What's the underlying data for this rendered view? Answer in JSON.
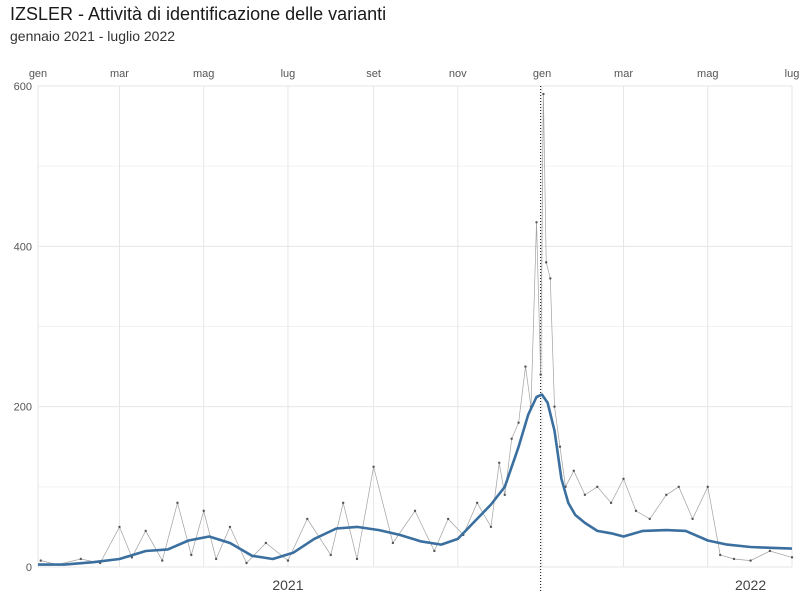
{
  "header": {
    "title": "IZSLER - Attività di identificazione delle varianti",
    "subtitle": "gennaio 2021 - luglio 2022"
  },
  "chart_data": {
    "type": "line",
    "title": "IZSLER - Attività di identificazione delle varianti",
    "subtitle": "gennaio 2021 - luglio 2022",
    "xlabel": "",
    "ylabel": "",
    "x_range": [
      "2021-01-01",
      "2022-07-01"
    ],
    "ylim": [
      0,
      600
    ],
    "y_ticks": [
      0,
      200,
      400,
      600
    ],
    "month_ticks": [
      {
        "label": "gen",
        "date": "2021-01-01"
      },
      {
        "label": "mar",
        "date": "2021-03-01"
      },
      {
        "label": "mag",
        "date": "2021-05-01"
      },
      {
        "label": "lug",
        "date": "2021-07-01"
      },
      {
        "label": "set",
        "date": "2021-09-01"
      },
      {
        "label": "nov",
        "date": "2021-11-01"
      },
      {
        "label": "gen",
        "date": "2022-01-01"
      },
      {
        "label": "mar",
        "date": "2022-03-01"
      },
      {
        "label": "mag",
        "date": "2022-05-01"
      },
      {
        "label": "lug",
        "date": "2022-07-01"
      }
    ],
    "year_labels": [
      {
        "label": "2021",
        "date": "2021-07-01"
      },
      {
        "label": "2022",
        "date": "2022-06-01"
      }
    ],
    "vline_date": "2021-12-31",
    "grid": true,
    "colors": {
      "smooth": "#3a6f9f",
      "daily": "#8a8a8a",
      "grid": "#e6e6e6",
      "vline": "#000000"
    },
    "series": [
      {
        "style": "daily",
        "x": [
          "2021-01-03",
          "2021-01-15",
          "2021-02-01",
          "2021-02-15",
          "2021-03-01",
          "2021-03-10",
          "2021-03-20",
          "2021-04-01",
          "2021-04-12",
          "2021-04-22",
          "2021-05-01",
          "2021-05-10",
          "2021-05-20",
          "2021-06-01",
          "2021-06-15",
          "2021-07-01",
          "2021-07-15",
          "2021-08-01",
          "2021-08-10",
          "2021-08-20",
          "2021-09-01",
          "2021-09-15",
          "2021-10-01",
          "2021-10-15",
          "2021-10-25",
          "2021-11-05",
          "2021-11-15",
          "2021-11-25",
          "2021-12-01",
          "2021-12-05",
          "2021-12-10",
          "2021-12-15",
          "2021-12-20",
          "2021-12-24",
          "2021-12-28",
          "2021-12-31",
          "2022-01-02",
          "2022-01-04",
          "2022-01-07",
          "2022-01-10",
          "2022-01-14",
          "2022-01-18",
          "2022-01-24",
          "2022-02-01",
          "2022-02-10",
          "2022-02-20",
          "2022-03-01",
          "2022-03-10",
          "2022-03-20",
          "2022-04-01",
          "2022-04-10",
          "2022-04-20",
          "2022-05-01",
          "2022-05-10",
          "2022-05-20",
          "2022-06-01",
          "2022-06-15",
          "2022-07-01"
        ],
        "values": [
          8,
          3,
          10,
          5,
          50,
          12,
          45,
          8,
          80,
          15,
          70,
          10,
          50,
          5,
          30,
          8,
          60,
          15,
          80,
          10,
          125,
          30,
          70,
          20,
          60,
          40,
          80,
          50,
          130,
          90,
          160,
          180,
          250,
          200,
          430,
          240,
          590,
          380,
          360,
          200,
          150,
          100,
          120,
          90,
          100,
          80,
          110,
          70,
          60,
          90,
          100,
          60,
          100,
          15,
          10,
          8,
          20,
          12
        ]
      },
      {
        "style": "smooth",
        "x": [
          "2021-01-01",
          "2021-01-20",
          "2021-02-10",
          "2021-03-01",
          "2021-03-20",
          "2021-04-05",
          "2021-04-20",
          "2021-05-05",
          "2021-05-20",
          "2021-06-05",
          "2021-06-20",
          "2021-07-05",
          "2021-07-20",
          "2021-08-05",
          "2021-08-20",
          "2021-09-05",
          "2021-09-20",
          "2021-10-05",
          "2021-10-20",
          "2021-11-01",
          "2021-11-15",
          "2021-11-25",
          "2021-12-05",
          "2021-12-15",
          "2021-12-22",
          "2021-12-28",
          "2022-01-01",
          "2022-01-05",
          "2022-01-10",
          "2022-01-15",
          "2022-01-20",
          "2022-01-25",
          "2022-02-01",
          "2022-02-10",
          "2022-02-20",
          "2022-03-01",
          "2022-03-15",
          "2022-04-01",
          "2022-04-15",
          "2022-05-01",
          "2022-05-15",
          "2022-06-01",
          "2022-06-15",
          "2022-07-01"
        ],
        "values": [
          3,
          3,
          6,
          10,
          20,
          22,
          33,
          38,
          30,
          14,
          10,
          18,
          35,
          48,
          50,
          46,
          40,
          32,
          28,
          35,
          60,
          78,
          100,
          150,
          190,
          212,
          215,
          205,
          170,
          110,
          80,
          65,
          55,
          45,
          42,
          38,
          45,
          46,
          45,
          33,
          28,
          25,
          24,
          23
        ]
      }
    ]
  }
}
